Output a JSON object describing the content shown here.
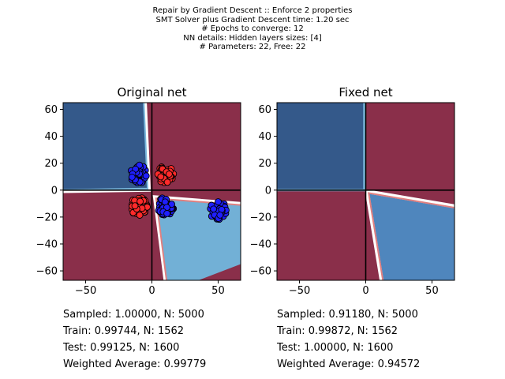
{
  "header": {
    "lines": [
      "Repair by Gradient Descent :: Enforce 2 properties",
      "SMT Solver plus Gradient Descent time: 1.20 sec",
      "# Epochs to converge: 12",
      "NN details: Hidden layers sizes: [4]",
      "# Parameters: 22, Free: 22"
    ]
  },
  "colors": {
    "dark_blue": "#34598a",
    "light_blue": "#72b0d6",
    "mid_blue": "#4f86bd",
    "red_region": "#8a2f4a",
    "red_point": "#ff2a2a",
    "blue_point": "#1f1fff"
  },
  "chart_data": [
    {
      "type": "scatter",
      "title": "Original net",
      "xlim": [
        -67,
        67
      ],
      "ylim": [
        -67,
        65
      ],
      "xticks": [
        -50,
        0,
        50
      ],
      "yticks": [
        60,
        40,
        20,
        0,
        -20,
        -40,
        -60
      ],
      "reference_lines": {
        "x": 0,
        "y": 0
      },
      "decision_regions": "filled decision boundary contour",
      "series": [
        {
          "color": "red",
          "clusters": [
            {
              "x": 10,
              "y": 12
            },
            {
              "x": -10,
              "y": -12
            }
          ]
        },
        {
          "color": "blue",
          "clusters": [
            {
              "x": -10,
              "y": 12
            },
            {
              "x": 10,
              "y": -12
            },
            {
              "x": 50,
              "y": -15
            }
          ]
        }
      ],
      "stats": [
        "Sampled: 1.00000, N: 5000",
        "Train: 0.99744, N: 1562",
        "Test: 0.99125, N: 1600",
        "Weighted Average: 0.99779"
      ]
    },
    {
      "type": "contour",
      "title": "Fixed net",
      "xlim": [
        -67,
        67
      ],
      "ylim": [
        -67,
        65
      ],
      "xticks": [
        -50,
        0,
        50
      ],
      "yticks": [
        60,
        40,
        20,
        0,
        -20,
        -40,
        -60
      ],
      "reference_lines": {
        "x": 0,
        "y": 0
      },
      "decision_regions": "filled decision boundary contour",
      "stats": [
        "Sampled: 0.91180, N: 5000",
        "Train: 0.99872, N: 1562",
        "Test: 1.00000, N: 1600",
        "Weighted Average: 0.94572"
      ]
    }
  ]
}
